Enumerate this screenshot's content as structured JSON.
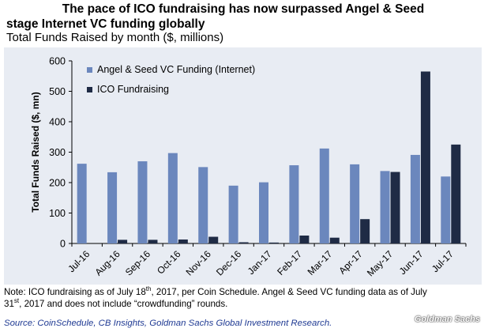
{
  "title_line1": "The pace of ICO fundraising has now surpassed Angel & Seed",
  "title_line2": "stage Internet VC funding globally",
  "subtitle": "Total Funds Raised by month ($, millions)",
  "note": {
    "part1": "Note: ICO fundraising as of July 18",
    "sup1": "th",
    "part2": ", 2017, per Coin Schedule. Angel & Seed VC funding data as of July",
    "part3": "31",
    "sup2": "st",
    "part4": ", 2017 and does not include “crowdfunding” rounds."
  },
  "source": "Source: CoinSchedule, CB Insights, Goldman Sachs Global Investment Research.",
  "watermark": "Goldman Sachs",
  "chart_data": {
    "type": "bar",
    "categories": [
      "Jul-16",
      "Aug-16",
      "Sep-16",
      "Oct-16",
      "Nov-16",
      "Dec-16",
      "Jan-17",
      "Feb-17",
      "Mar-17",
      "Apr-17",
      "May-17",
      "Jun-17",
      "Jul-17"
    ],
    "series": [
      {
        "name": "Angel & Seed VC Funding (Internet)",
        "color": "#6b87bd",
        "values": [
          262,
          234,
          270,
          297,
          251,
          190,
          201,
          257,
          312,
          260,
          238,
          291,
          220
        ]
      },
      {
        "name": "ICO Fundraising",
        "color": "#1f2b45",
        "values": [
          0,
          12,
          12,
          13,
          22,
          4,
          3,
          26,
          19,
          80,
          235,
          565,
          325
        ]
      }
    ],
    "ylabel": "Total Funds Raised ($, mn)",
    "xlabel": "",
    "ylim": [
      0,
      600
    ],
    "yticks": [
      0,
      100,
      200,
      300,
      400,
      500,
      600
    ],
    "legend_position": "top-left",
    "grid": false
  }
}
